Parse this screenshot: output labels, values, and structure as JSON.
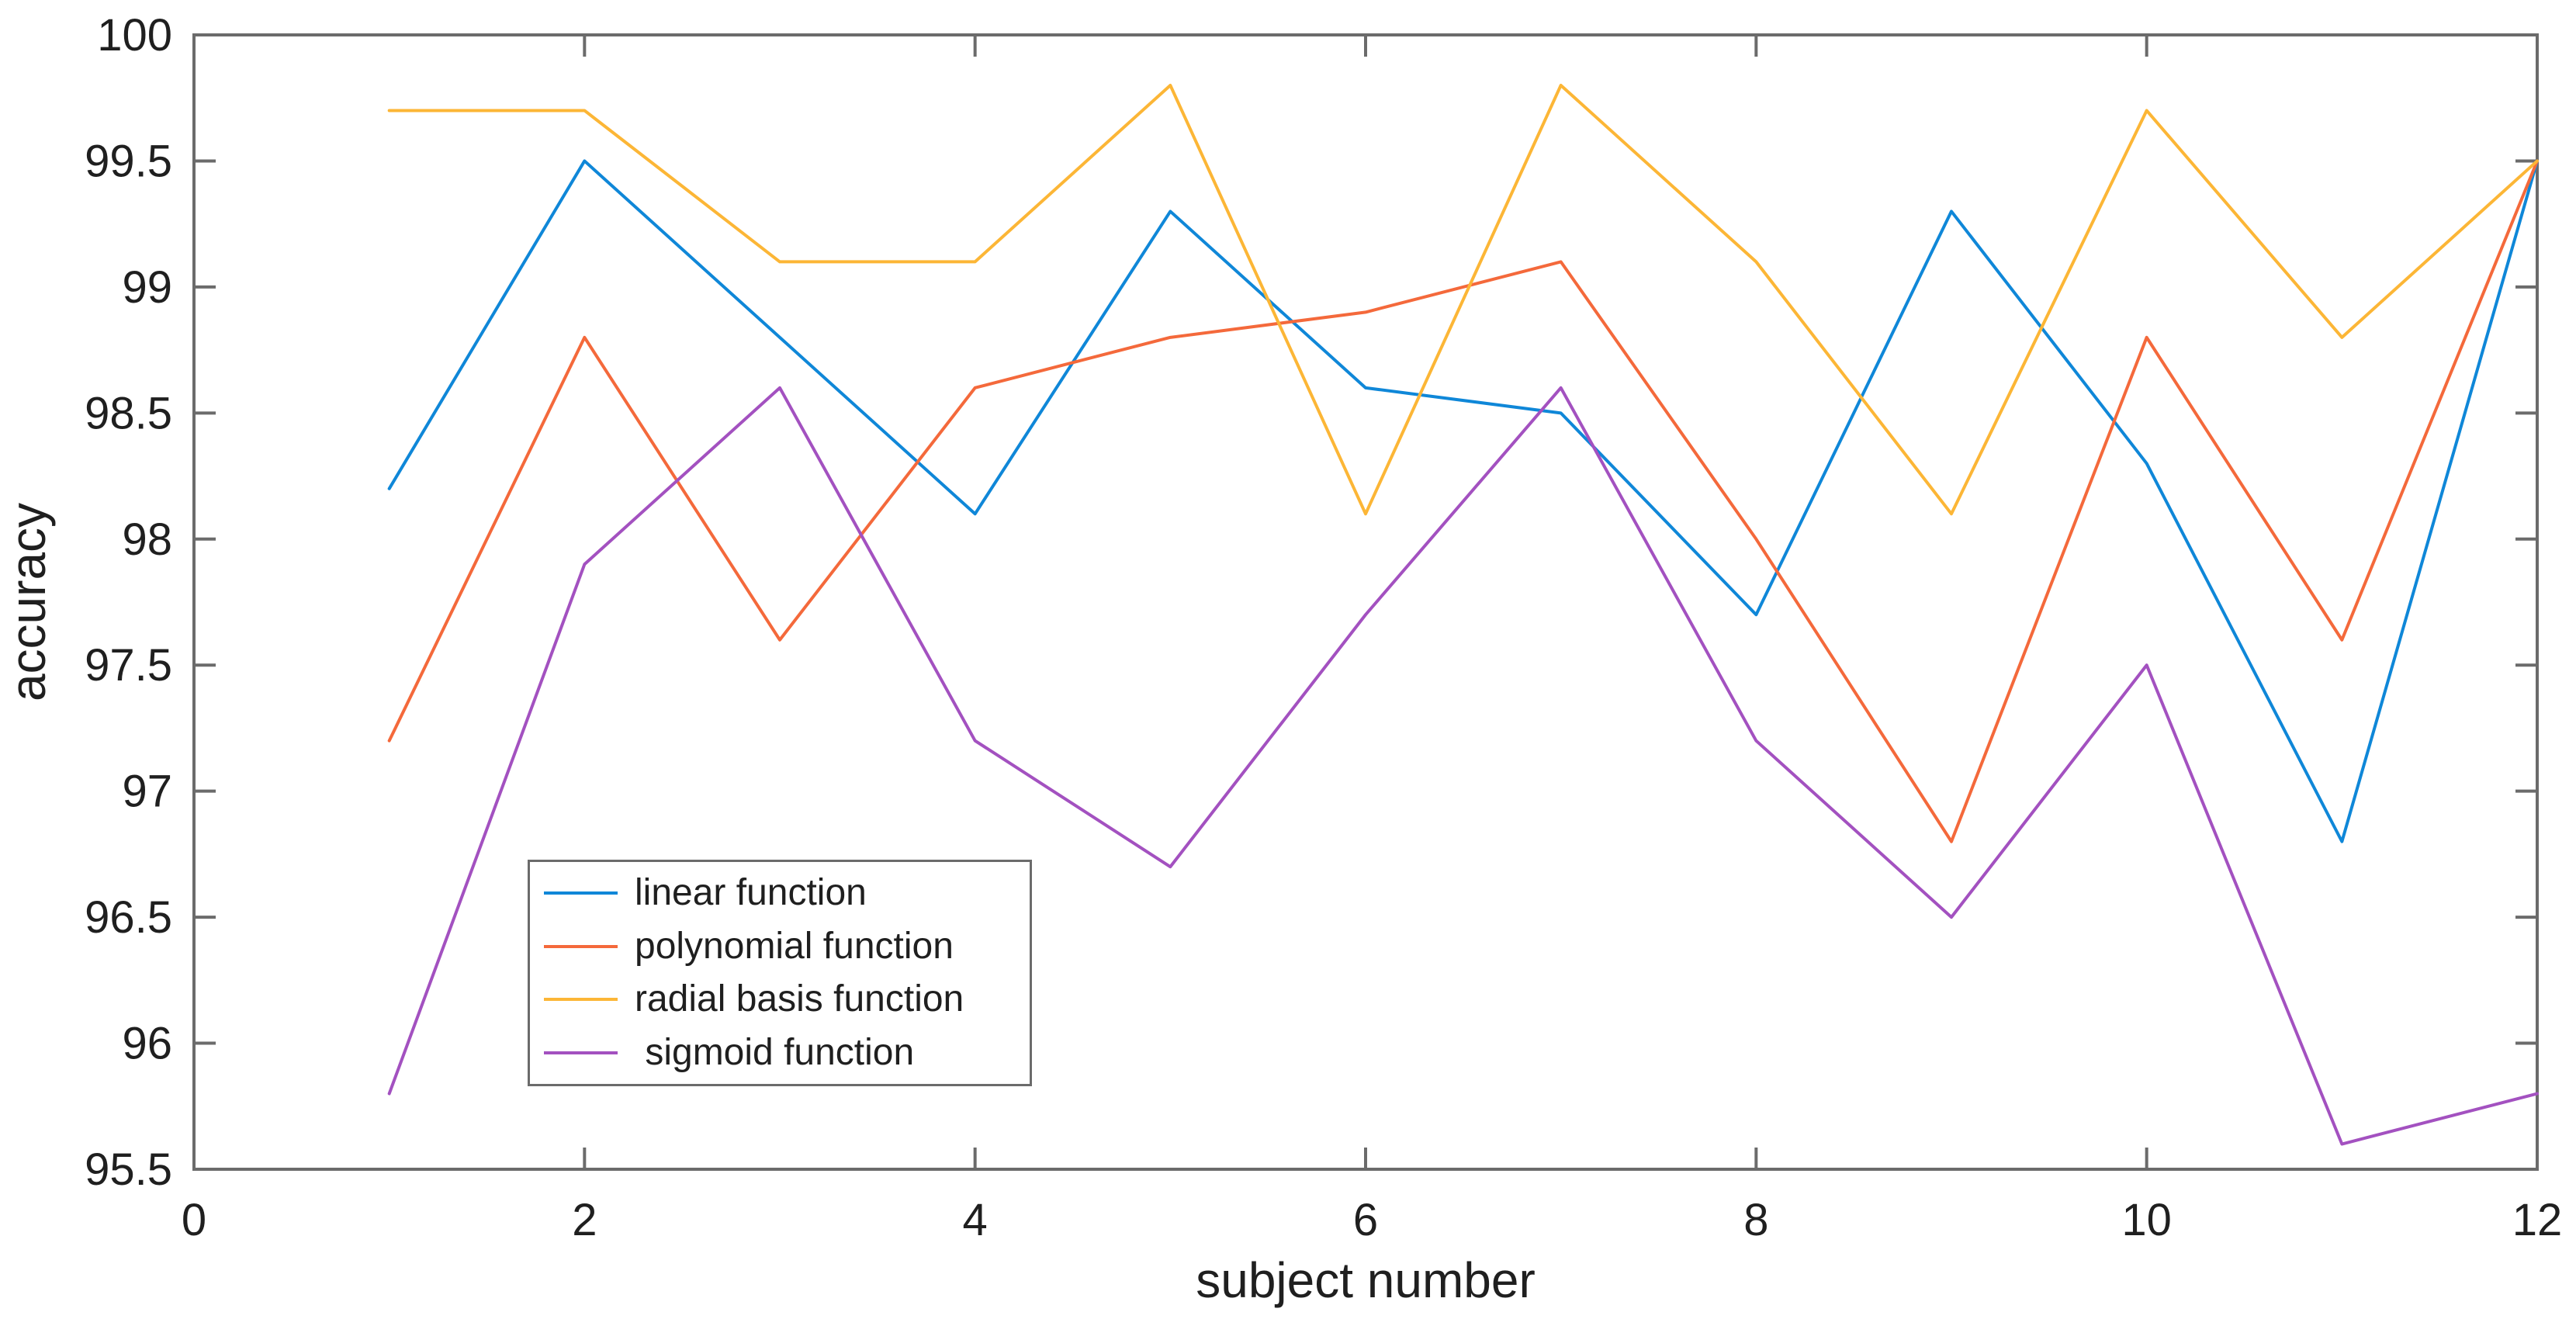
{
  "chart_data": {
    "type": "line",
    "title": "",
    "xlabel": "subject number",
    "ylabel": "accuracy",
    "xlim": [
      0,
      12
    ],
    "ylim": [
      95.5,
      100
    ],
    "grid": false,
    "legend_position": "lower-left-inside",
    "xtick_values": [
      0,
      2,
      4,
      6,
      8,
      10,
      12
    ],
    "xtick_labels": [
      "0",
      "2",
      "4",
      "6",
      "8",
      "10",
      "12"
    ],
    "ytick_values": [
      95.5,
      96,
      96.5,
      97,
      97.5,
      98,
      98.5,
      99,
      99.5,
      100
    ],
    "ytick_labels": [
      "95.5",
      "96",
      "96.5",
      "97",
      "97.5",
      "98",
      "98.5",
      "99",
      "99.5",
      "100"
    ],
    "x": [
      1,
      2,
      3,
      4,
      5,
      6,
      7,
      8,
      9,
      10,
      11,
      12
    ],
    "series": [
      {
        "name": "linear function",
        "color": "#0f87d8",
        "values": [
          98.2,
          99.5,
          98.8,
          98.1,
          99.3,
          98.6,
          98.5,
          97.7,
          99.3,
          98.3,
          96.8,
          99.5
        ]
      },
      {
        "name": "polynomial function",
        "color": "#f4693b",
        "values": [
          97.2,
          98.8,
          97.6,
          98.6,
          98.8,
          98.9,
          99.1,
          98.0,
          96.8,
          98.8,
          97.6,
          99.5
        ]
      },
      {
        "name": "radial basis function",
        "color": "#fcb636",
        "values": [
          99.7,
          99.7,
          99.1,
          99.1,
          99.8,
          98.1,
          99.8,
          99.1,
          98.1,
          99.7,
          98.8,
          99.5
        ]
      },
      {
        "name": " sigmoid function",
        "color": "#a351c0",
        "values": [
          95.8,
          97.9,
          98.6,
          97.2,
          96.7,
          97.7,
          98.6,
          97.2,
          96.5,
          97.5,
          95.6,
          95.8
        ]
      }
    ],
    "axis_color": "#6b6b6b",
    "text_color": "#1f1f1f"
  }
}
